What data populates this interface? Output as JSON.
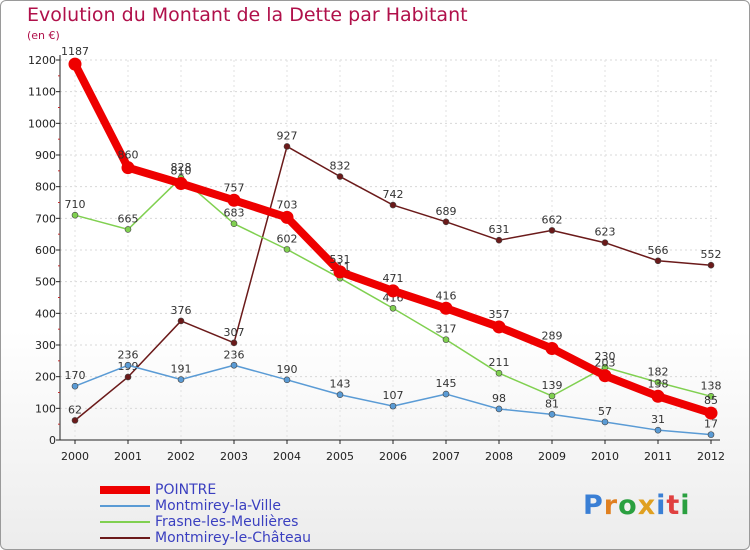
{
  "title": "Evolution du Montant de la Dette par Habitant",
  "unit": "(en €)",
  "logo": "Proxiti",
  "chart_data": {
    "type": "line",
    "title": "Evolution du Montant de la Dette par Habitant",
    "ylabel": "(en €)",
    "ylim": [
      0,
      1200
    ],
    "x": [
      "2000",
      "2001",
      "2002",
      "2003",
      "2004",
      "2005",
      "2006",
      "2007",
      "2008",
      "2009",
      "2010",
      "2011",
      "2012"
    ],
    "yticks": [
      0,
      100,
      200,
      300,
      400,
      500,
      600,
      700,
      800,
      900,
      1000,
      1100,
      1200
    ],
    "legend_position": "bottom-left",
    "series": [
      {
        "name": "POINTRE",
        "color": "#ee0000",
        "values": [
          1187,
          860,
          810,
          757,
          703,
          531,
          471,
          416,
          357,
          289,
          203,
          138,
          85
        ]
      },
      {
        "name": "Montmirey-la-Ville",
        "color": "#5a9bd5",
        "values": [
          170,
          236,
          191,
          236,
          190,
          143,
          107,
          145,
          98,
          81,
          57,
          31,
          17
        ]
      },
      {
        "name": "Frasne-les-Meulières",
        "color": "#80d050",
        "values": [
          710,
          665,
          828,
          683,
          602,
          511,
          416,
          317,
          211,
          139,
          230,
          182,
          138
        ]
      },
      {
        "name": "Montmirey-le-Château",
        "color": "#6b1a1a",
        "values": [
          62,
          199,
          376,
          307,
          927,
          832,
          742,
          689,
          631,
          662,
          623,
          566,
          552
        ]
      }
    ]
  }
}
